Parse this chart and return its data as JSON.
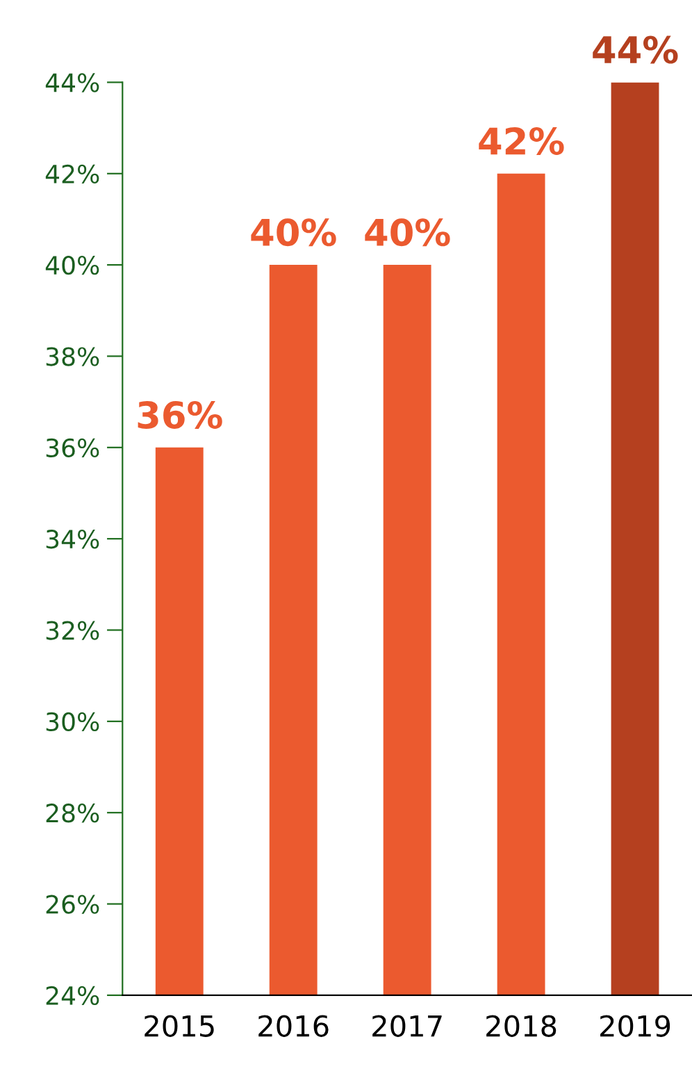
{
  "chart_data": {
    "type": "bar",
    "categories": [
      "2015",
      "2016",
      "2017",
      "2018",
      "2019"
    ],
    "values": [
      36,
      40,
      40,
      42,
      44
    ],
    "colors": [
      "#eb5a2f",
      "#eb5a2f",
      "#eb5a2f",
      "#eb5a2f",
      "#b5401f"
    ],
    "value_labels": [
      "36%",
      "40%",
      "40%",
      "42%",
      "44%"
    ],
    "ylim": [
      24,
      44
    ],
    "yticks": [
      {
        "value": 24,
        "label": "24%"
      },
      {
        "value": 26,
        "label": "26%"
      },
      {
        "value": 28,
        "label": "28%"
      },
      {
        "value": 30,
        "label": "30%"
      },
      {
        "value": 32,
        "label": "32%"
      },
      {
        "value": 34,
        "label": "34%"
      },
      {
        "value": 36,
        "label": "36%"
      },
      {
        "value": 38,
        "label": "38%"
      },
      {
        "value": 40,
        "label": "40%"
      },
      {
        "value": 42,
        "label": "42%"
      },
      {
        "value": 44,
        "label": "44%"
      }
    ],
    "grid": false,
    "legend": false
  }
}
